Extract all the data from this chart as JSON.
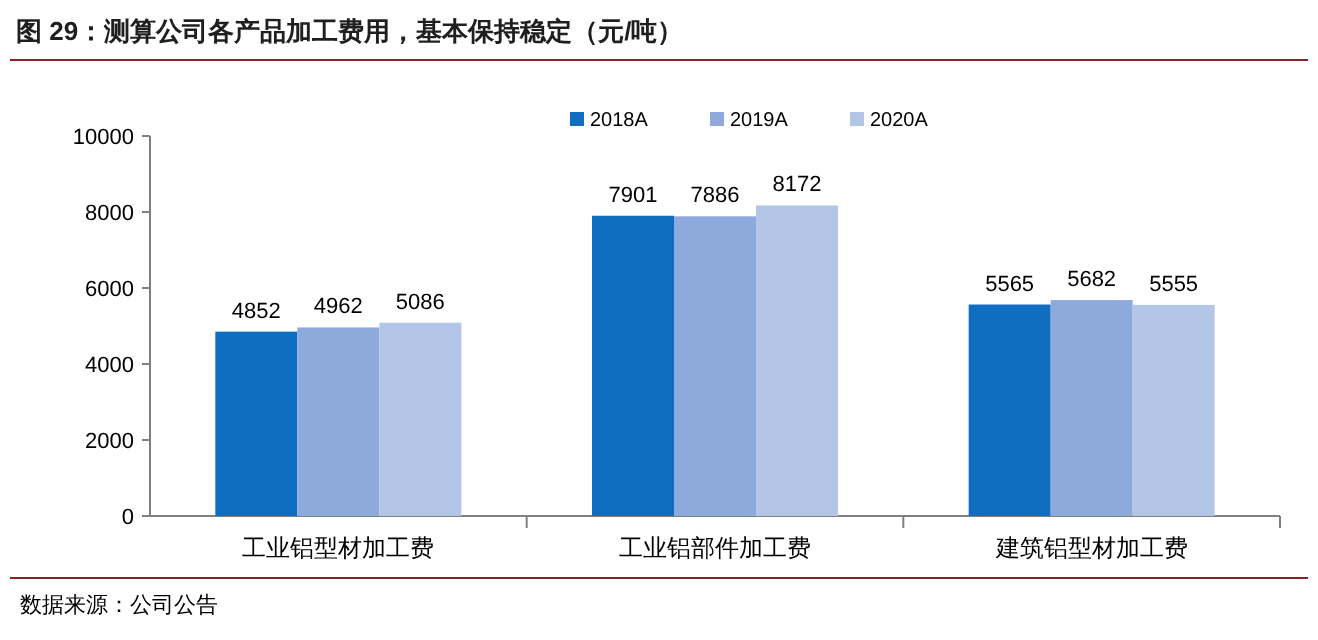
{
  "chart_data": {
    "type": "bar",
    "title": "图 29：测算公司各产品加工费用，基本保持稳定（元/吨）",
    "categories": [
      "工业铝型材加工费",
      "工业铝部件加工费",
      "建筑铝型材加工费"
    ],
    "series": [
      {
        "name": "2018A",
        "color": "#0f6ec0",
        "values": [
          4852,
          7901,
          5565
        ]
      },
      {
        "name": "2019A",
        "color": "#8eaadc",
        "values": [
          4962,
          7886,
          5682
        ]
      },
      {
        "name": "2020A",
        "color": "#b4c6e7",
        "values": [
          5086,
          8172,
          5555
        ]
      }
    ],
    "ylim": [
      0,
      10000
    ],
    "yticks": [
      0,
      2000,
      4000,
      6000,
      8000,
      10000
    ],
    "grid": false,
    "legend": "top right",
    "data_labels": true,
    "annotations": [
      "数据来源：公司公告"
    ]
  }
}
